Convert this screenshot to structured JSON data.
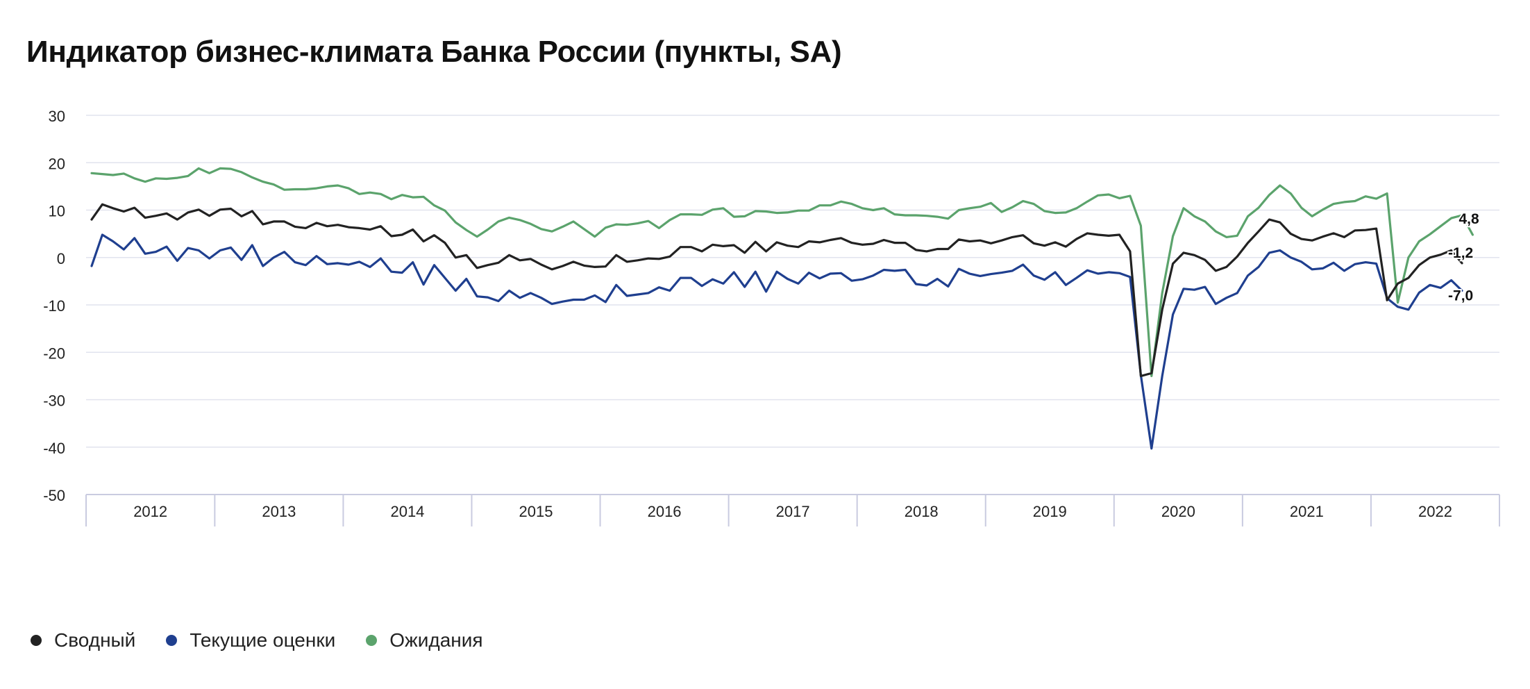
{
  "title": "Индикатор бизнес-климата Банка России (пункты, SA)",
  "chart_data": {
    "type": "line",
    "title": "Индикатор бизнес-климата Банка России (пункты, SA)",
    "ylim": [
      -50,
      30
    ],
    "yticks": [
      30,
      20,
      10,
      0,
      -10,
      -20,
      -30,
      -40,
      -50
    ],
    "tick_label_format": "decimal comma",
    "grid": true,
    "legend_position": "bottom-left",
    "x_start": "2012-01",
    "x_end": "2022-11",
    "x_frequency": "monthly",
    "years": [
      "2012",
      "2013",
      "2014",
      "2015",
      "2016",
      "2017",
      "2018",
      "2019",
      "2020",
      "2021",
      "2022"
    ],
    "series": [
      {
        "name": "Сводный",
        "color": "#222222",
        "end_label": "-1,2",
        "values": [
          8.0,
          11.2,
          10.4,
          9.7,
          10.5,
          8.4,
          8.8,
          9.3,
          8.0,
          9.5,
          10.1,
          8.8,
          10.1,
          10.3,
          8.7,
          9.8,
          7.0,
          7.6,
          7.6,
          6.5,
          6.2,
          7.3,
          6.6,
          6.9,
          6.4,
          6.2,
          5.9,
          6.6,
          4.5,
          4.8,
          5.9,
          3.4,
          4.7,
          3.1,
          0.0,
          0.5,
          -2.2,
          -1.6,
          -1.1,
          0.5,
          -0.6,
          -0.3,
          -1.5,
          -2.5,
          -1.8,
          -0.9,
          -1.7,
          -2.0,
          -1.9,
          0.5,
          -0.9,
          -0.6,
          -0.2,
          -0.3,
          0.2,
          2.2,
          2.2,
          1.3,
          2.7,
          2.4,
          2.6,
          1.0,
          3.3,
          1.3,
          3.2,
          2.5,
          2.2,
          3.4,
          3.2,
          3.7,
          4.1,
          3.1,
          2.7,
          2.9,
          3.7,
          3.1,
          3.1,
          1.6,
          1.3,
          1.8,
          1.8,
          3.8,
          3.4,
          3.6,
          3.0,
          3.6,
          4.3,
          4.7,
          3.0,
          2.5,
          3.2,
          2.3,
          3.9,
          5.1,
          4.8,
          4.6,
          4.8,
          1.3,
          -25.0,
          -24.4,
          -11.0,
          -1.3,
          1.0,
          0.5,
          -0.5,
          -2.8,
          -2.0,
          0.2,
          3.1,
          5.5,
          8.0,
          7.4,
          5.0,
          3.9,
          3.6,
          4.4,
          5.1,
          4.3,
          5.7,
          5.8,
          6.1,
          -9.0,
          -5.5,
          -4.3,
          -1.6,
          0.0,
          0.6,
          1.5,
          -1.2
        ]
      },
      {
        "name": "Текущие оценки",
        "color": "#1f3f8f",
        "end_label": "-7,0",
        "values": [
          -1.8,
          4.8,
          3.4,
          1.7,
          4.1,
          0.8,
          1.2,
          2.3,
          -0.7,
          2.0,
          1.5,
          -0.2,
          1.5,
          2.1,
          -0.5,
          2.6,
          -1.8,
          0.0,
          1.2,
          -1.0,
          -1.6,
          0.3,
          -1.4,
          -1.2,
          -1.5,
          -0.9,
          -2.0,
          -0.2,
          -3.0,
          -3.2,
          -1.0,
          -5.7,
          -1.6,
          -4.3,
          -7.0,
          -4.5,
          -8.2,
          -8.4,
          -9.2,
          -7.0,
          -8.5,
          -7.5,
          -8.5,
          -9.8,
          -9.3,
          -8.9,
          -8.9,
          -8.0,
          -9.4,
          -5.8,
          -8.1,
          -7.8,
          -7.5,
          -6.3,
          -7.0,
          -4.3,
          -4.3,
          -6.0,
          -4.6,
          -5.5,
          -3.1,
          -6.2,
          -3.0,
          -7.2,
          -3.0,
          -4.5,
          -5.5,
          -3.2,
          -4.4,
          -3.4,
          -3.3,
          -4.9,
          -4.6,
          -3.8,
          -2.6,
          -2.8,
          -2.6,
          -5.6,
          -5.9,
          -4.5,
          -6.1,
          -2.4,
          -3.4,
          -3.9,
          -3.5,
          -3.2,
          -2.8,
          -1.5,
          -3.8,
          -4.7,
          -3.1,
          -5.8,
          -4.3,
          -2.7,
          -3.4,
          -3.1,
          -3.3,
          -4.1,
          -24.8,
          -40.3,
          -25.0,
          -12.0,
          -6.6,
          -6.8,
          -6.2,
          -9.8,
          -8.5,
          -7.5,
          -3.8,
          -2.0,
          1.0,
          1.5,
          0.0,
          -0.9,
          -2.5,
          -2.3,
          -1.1,
          -2.8,
          -1.4,
          -1.0,
          -1.3,
          -8.6,
          -10.4,
          -11.0,
          -7.4,
          -5.8,
          -6.4,
          -4.8,
          -7.0
        ]
      },
      {
        "name": "Ожидания",
        "color": "#5ba36c",
        "end_label": "4,8",
        "values": [
          17.8,
          17.6,
          17.4,
          17.7,
          16.7,
          16.0,
          16.7,
          16.6,
          16.8,
          17.2,
          18.8,
          17.8,
          18.8,
          18.7,
          18.0,
          16.9,
          16.0,
          15.4,
          14.3,
          14.4,
          14.4,
          14.6,
          15.0,
          15.2,
          14.6,
          13.4,
          13.7,
          13.4,
          12.3,
          13.2,
          12.7,
          12.8,
          11.0,
          9.9,
          7.4,
          5.8,
          4.4,
          5.9,
          7.6,
          8.4,
          7.9,
          7.1,
          6.0,
          5.5,
          6.5,
          7.6,
          6.0,
          4.4,
          6.3,
          7.0,
          6.9,
          7.2,
          7.7,
          6.2,
          7.9,
          9.1,
          9.1,
          9.0,
          10.1,
          10.4,
          8.6,
          8.7,
          9.8,
          9.7,
          9.4,
          9.5,
          9.9,
          9.9,
          11.0,
          11.0,
          11.8,
          11.3,
          10.4,
          10.0,
          10.4,
          9.1,
          8.9,
          8.9,
          8.8,
          8.6,
          8.2,
          10.0,
          10.4,
          10.7,
          11.5,
          9.6,
          10.6,
          11.9,
          11.3,
          9.8,
          9.4,
          9.5,
          10.4,
          11.8,
          13.1,
          13.3,
          12.5,
          13.0,
          6.7,
          -25.0,
          -7.5,
          4.5,
          10.4,
          8.7,
          7.6,
          5.5,
          4.3,
          4.6,
          8.7,
          10.5,
          13.2,
          15.2,
          13.5,
          10.5,
          8.7,
          10.1,
          11.3,
          11.7,
          11.9,
          12.9,
          12.4,
          13.5,
          -9.5,
          0.0,
          3.4,
          4.9,
          6.6,
          8.3,
          8.9,
          4.8
        ]
      }
    ]
  }
}
